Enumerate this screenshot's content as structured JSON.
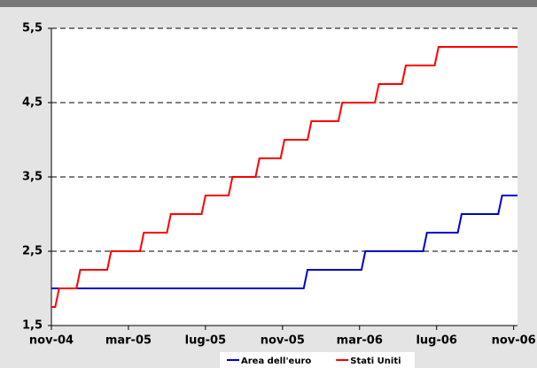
{
  "chart_data": {
    "type": "line",
    "xlim": [
      0,
      24.2
    ],
    "xticks": [
      {
        "value": 0,
        "label": "nov-04"
      },
      {
        "value": 4,
        "label": "mar-05"
      },
      {
        "value": 8,
        "label": "lug-05"
      },
      {
        "value": 12,
        "label": "nov-05"
      },
      {
        "value": 16,
        "label": "mar-06"
      },
      {
        "value": 20,
        "label": "lug-06"
      },
      {
        "value": 24,
        "label": "nov-06"
      }
    ],
    "ylim": [
      1.5,
      5.5
    ],
    "yticks": [
      {
        "value": 1.5,
        "label": "1,5"
      },
      {
        "value": 2.5,
        "label": "2,5"
      },
      {
        "value": 3.5,
        "label": "3,5"
      },
      {
        "value": 4.5,
        "label": "4,5"
      },
      {
        "value": 5.5,
        "label": "5,5"
      }
    ],
    "grid": true,
    "legend": "bottom",
    "series": [
      {
        "name": "Area dell'euro",
        "color": "#0000cc",
        "x": [
          0,
          13.1,
          13.3,
          16.1,
          16.3,
          19.3,
          19.5,
          21.1,
          21.3,
          23.2,
          23.4,
          24.2
        ],
        "values": [
          2.0,
          2.0,
          2.25,
          2.25,
          2.5,
          2.5,
          2.75,
          2.75,
          3.0,
          3.0,
          3.25,
          3.25
        ]
      },
      {
        "name": "Stati Uniti",
        "color": "#ff0000",
        "x": [
          0,
          0.2,
          0.4,
          1.3,
          1.5,
          2.9,
          3.1,
          4.6,
          4.8,
          6.0,
          6.2,
          7.8,
          8.0,
          9.2,
          9.4,
          10.6,
          10.8,
          11.9,
          12.1,
          13.3,
          13.5,
          14.9,
          15.1,
          16.8,
          17.0,
          18.2,
          18.4,
          19.9,
          20.1,
          24.2
        ],
        "values": [
          1.75,
          1.75,
          2.0,
          2.0,
          2.25,
          2.25,
          2.5,
          2.5,
          2.75,
          2.75,
          3.0,
          3.0,
          3.25,
          3.25,
          3.5,
          3.5,
          3.75,
          3.75,
          4.0,
          4.0,
          4.25,
          4.25,
          4.5,
          4.5,
          4.75,
          4.75,
          5.0,
          5.0,
          5.25,
          5.25
        ]
      }
    ]
  }
}
